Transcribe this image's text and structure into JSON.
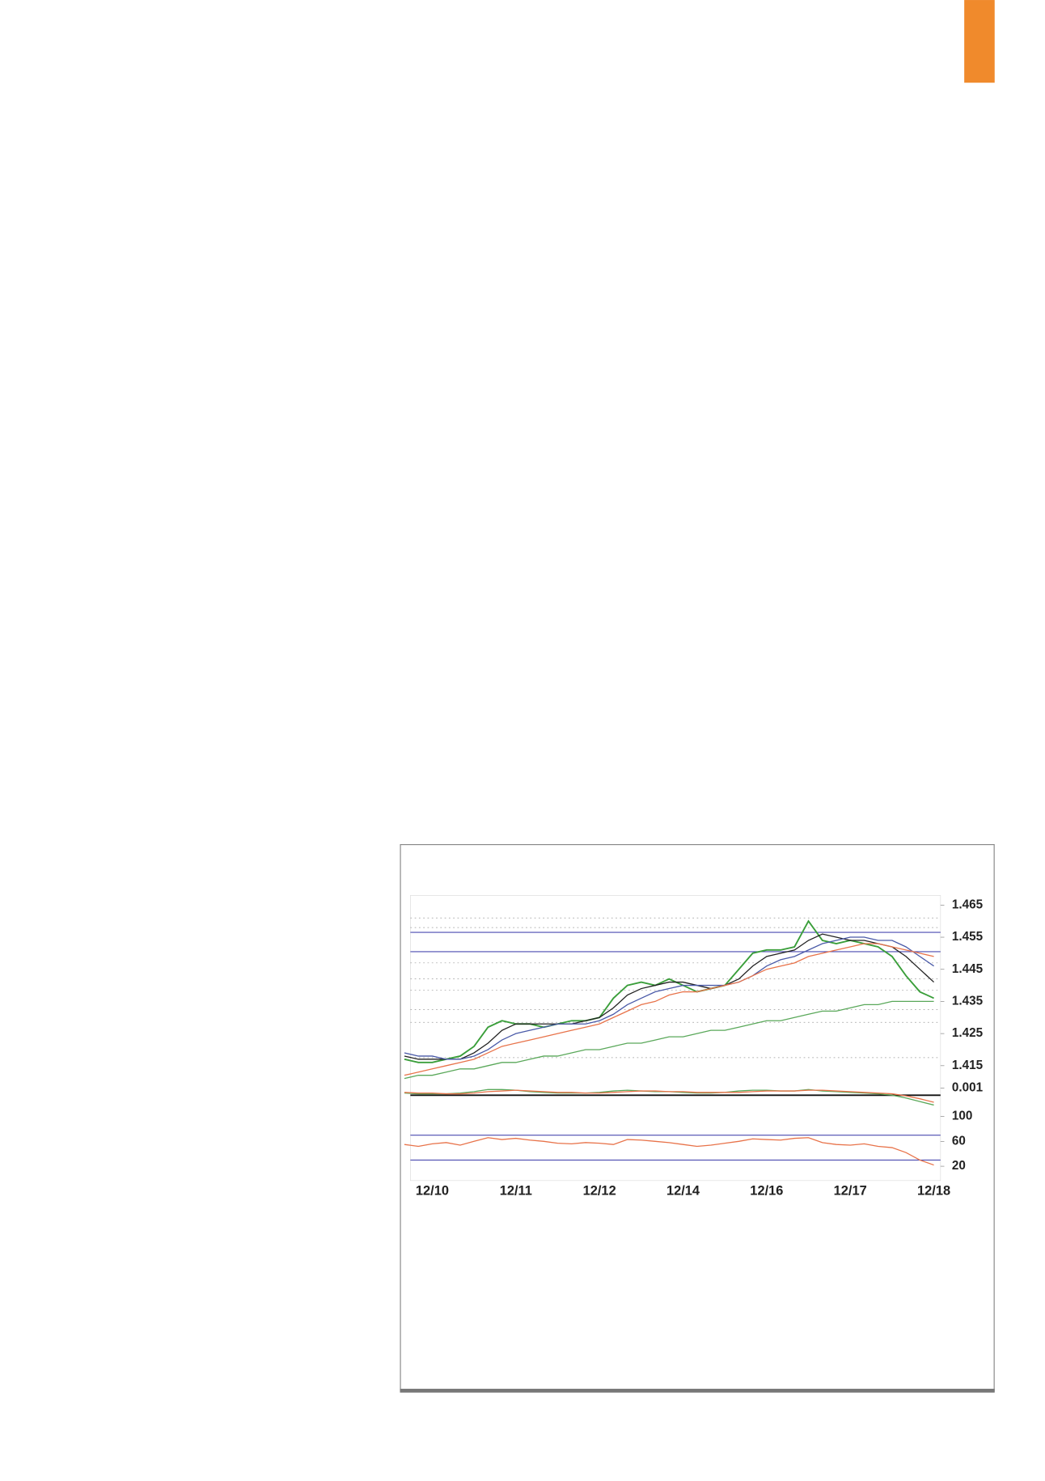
{
  "chart_data": [
    {
      "type": "line",
      "categories": [
        null,
        null,
        "12/10",
        null,
        null,
        null,
        null,
        null,
        "12/11",
        null,
        null,
        null,
        null,
        null,
        "12/12",
        null,
        null,
        null,
        null,
        null,
        "12/14",
        null,
        null,
        null,
        null,
        null,
        "12/16",
        null,
        null,
        null,
        null,
        null,
        "12/17",
        null,
        null,
        null,
        null,
        null,
        "12/18"
      ],
      "series": [
        {
          "color": "#3a9e3a",
          "values": [
            1.417,
            1.416,
            1.416,
            1.417,
            1.418,
            1.421,
            1.427,
            1.429,
            1.428,
            1.428,
            1.427,
            1.428,
            1.429,
            1.429,
            1.43,
            1.436,
            1.44,
            1.441,
            1.44,
            1.442,
            1.44,
            1.438,
            1.439,
            1.44,
            1.445,
            1.45,
            1.451,
            1.451,
            1.452,
            1.46,
            1.454,
            1.453,
            1.454,
            1.453,
            1.452,
            1.449,
            1.443,
            1.438,
            1.436
          ]
        },
        {
          "color": "#222222",
          "values": [
            1.418,
            1.417,
            1.417,
            1.417,
            1.417,
            1.419,
            1.422,
            1.426,
            1.428,
            1.428,
            1.428,
            1.428,
            1.428,
            1.429,
            1.43,
            1.433,
            1.437,
            1.439,
            1.44,
            1.441,
            1.441,
            1.44,
            1.439,
            1.44,
            1.442,
            1.446,
            1.449,
            1.45,
            1.451,
            1.454,
            1.456,
            1.455,
            1.454,
            1.454,
            1.453,
            1.452,
            1.449,
            1.445,
            1.441
          ]
        },
        {
          "color": "#4a5aa8",
          "values": [
            1.419,
            1.418,
            1.418,
            1.417,
            1.417,
            1.418,
            1.42,
            1.423,
            1.425,
            1.426,
            1.427,
            1.428,
            1.428,
            1.428,
            1.429,
            1.431,
            1.434,
            1.436,
            1.438,
            1.439,
            1.44,
            1.44,
            1.44,
            1.44,
            1.441,
            1.443,
            1.446,
            1.448,
            1.449,
            1.451,
            1.453,
            1.454,
            1.455,
            1.455,
            1.454,
            1.454,
            1.452,
            1.449,
            1.446
          ]
        },
        {
          "color": "#e8734a",
          "values": [
            1.412,
            1.413,
            1.414,
            1.415,
            1.416,
            1.417,
            1.419,
            1.421,
            1.422,
            1.423,
            1.424,
            1.425,
            1.426,
            1.427,
            1.428,
            1.43,
            1.432,
            1.434,
            1.435,
            1.437,
            1.438,
            1.438,
            1.439,
            1.44,
            1.441,
            1.443,
            1.445,
            1.446,
            1.447,
            1.449,
            1.45,
            1.451,
            1.452,
            1.453,
            1.453,
            1.452,
            1.451,
            1.45,
            1.449
          ]
        },
        {
          "color": "#5aa85a",
          "values": [
            1.411,
            1.412,
            1.412,
            1.413,
            1.414,
            1.414,
            1.415,
            1.416,
            1.416,
            1.417,
            1.418,
            1.418,
            1.419,
            1.42,
            1.42,
            1.421,
            1.422,
            1.422,
            1.423,
            1.424,
            1.424,
            1.425,
            1.426,
            1.426,
            1.427,
            1.428,
            1.429,
            1.429,
            1.43,
            1.431,
            1.432,
            1.432,
            1.433,
            1.434,
            1.434,
            1.435,
            1.435,
            1.435,
            1.435
          ]
        }
      ],
      "ylim": [
        1.41,
        1.468
      ],
      "yticks": [
        1.465,
        1.455,
        1.445,
        1.435,
        1.425,
        1.415
      ],
      "hlines": [
        1.4565,
        1.4505
      ],
      "hline_color": "#4a4ab0",
      "dotted_levels": [
        1.461,
        1.458,
        1.447,
        1.442,
        1.4385,
        1.4325,
        1.4285,
        1.4175
      ]
    },
    {
      "type": "line",
      "series": [
        {
          "color": "#5aa85a",
          "values": [
            0.0003,
            0.0002,
            0.0002,
            0.0002,
            0.0003,
            0.0005,
            0.0008,
            0.0008,
            0.0007,
            0.0005,
            0.0004,
            0.0003,
            0.0003,
            0.0003,
            0.0004,
            0.0006,
            0.0007,
            0.0006,
            0.0005,
            0.0005,
            0.0004,
            0.0003,
            0.0003,
            0.0004,
            0.0006,
            0.0007,
            0.0007,
            0.0006,
            0.0006,
            0.0008,
            0.0006,
            0.0005,
            0.0004,
            0.0003,
            0.0002,
            0.0,
            -0.0004,
            -0.0009,
            -0.0014
          ]
        },
        {
          "color": "#e8734a",
          "values": [
            0.0004,
            0.0003,
            0.0003,
            0.0002,
            0.0002,
            0.0003,
            0.0005,
            0.0006,
            0.0007,
            0.0006,
            0.0005,
            0.0004,
            0.0004,
            0.0003,
            0.0003,
            0.0004,
            0.0005,
            0.0006,
            0.0006,
            0.0005,
            0.0005,
            0.0004,
            0.0004,
            0.0004,
            0.0004,
            0.0005,
            0.0006,
            0.0006,
            0.0006,
            0.0007,
            0.0007,
            0.0006,
            0.0005,
            0.0004,
            0.0003,
            0.0002,
            -0.0001,
            -0.0005,
            -0.001
          ]
        }
      ],
      "ylim": [
        -0.002,
        0.0015
      ],
      "yticks": [
        0.001
      ],
      "zero_line": true
    },
    {
      "type": "line",
      "series": [
        {
          "color": "#e8734a",
          "values": [
            55,
            52,
            56,
            58,
            54,
            60,
            66,
            63,
            65,
            62,
            60,
            57,
            56,
            58,
            57,
            55,
            63,
            62,
            60,
            58,
            55,
            52,
            54,
            57,
            60,
            64,
            63,
            62,
            65,
            66,
            58,
            55,
            54,
            56,
            52,
            50,
            42,
            30,
            22
          ]
        }
      ],
      "ylim": [
        0,
        110
      ],
      "yticks": [
        100,
        60,
        20
      ],
      "hlines": [
        70,
        30
      ],
      "hline_color": "#4a4ab0"
    }
  ]
}
